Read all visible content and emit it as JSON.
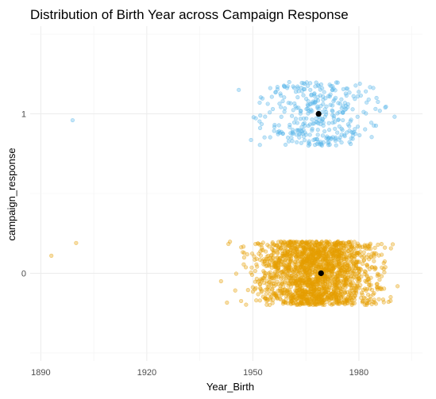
{
  "chart_data": {
    "type": "scatter",
    "title": "Distribution of Birth Year across Campaign Response",
    "xlabel": "Year_Birth",
    "ylabel": "campaign_response",
    "xlim": [
      1887,
      1998
    ],
    "ylim": [
      -0.55,
      1.55
    ],
    "x_ticks": [
      "1890",
      "1920",
      "1950",
      "1980"
    ],
    "x_tick_values": [
      1890,
      1920,
      1950,
      1980
    ],
    "y_ticks": [
      "0",
      "1"
    ],
    "y_tick_values": [
      0,
      1
    ],
    "grid": true,
    "jitter_height": 0.2,
    "series": [
      {
        "response": 1,
        "color": "#56B4E9",
        "count": 334,
        "x_range": [
          1940,
          1996
        ],
        "outliers": [
          {
            "x": 1899,
            "y": 0.96
          }
        ],
        "mean": {
          "x": 1968.6,
          "y": 1
        }
      },
      {
        "response": 0,
        "color": "#E69F00",
        "count": 1906,
        "x_range": [
          1940,
          1996
        ],
        "outliers": [
          {
            "x": 1893,
            "y": 0.11
          },
          {
            "x": 1900,
            "y": 0.19
          },
          {
            "x": 1941,
            "y": -0.05
          }
        ],
        "mean": {
          "x": 1969.3,
          "y": 0
        }
      }
    ]
  }
}
